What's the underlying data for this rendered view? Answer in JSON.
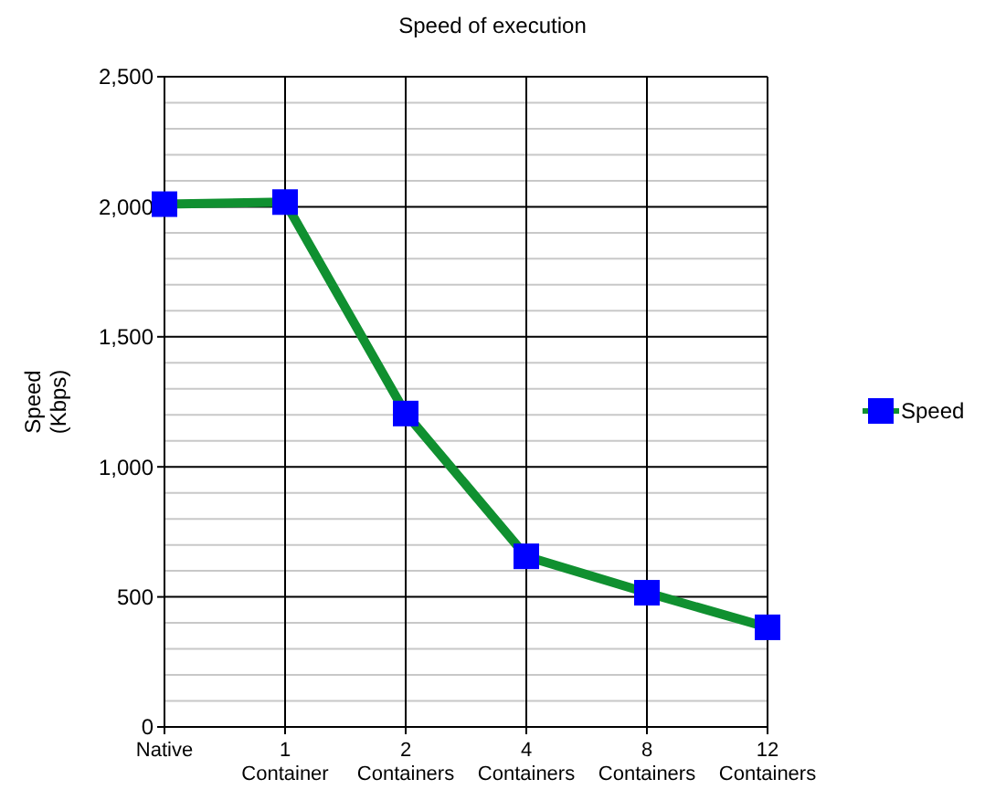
{
  "chart_data": {
    "type": "line",
    "title": "Speed of execution",
    "ylabel": "Speed (Kbps)",
    "categories": [
      "Native",
      "1 Container",
      "2 Containers",
      "4 Containers",
      "8 Containers",
      "12 Containers"
    ],
    "series": [
      {
        "name": "Speed",
        "color": "#109030",
        "colors": [
          "#0000ff",
          "#0000ff",
          "#0000ff",
          "#0000ff",
          "#0000ff",
          "#0000ff"
        ],
        "values": [
          2010,
          2018,
          1205,
          656,
          516,
          383
        ]
      }
    ],
    "ylim": [
      0,
      2500
    ],
    "yticks": [
      {
        "value": 0,
        "label": "0"
      },
      {
        "value": 500,
        "label": "500"
      },
      {
        "value": 1000,
        "label": "1,000"
      },
      {
        "value": 1500,
        "label": "1,500"
      },
      {
        "value": 2000,
        "label": "2,000"
      },
      {
        "value": 2500,
        "label": "2,500"
      }
    ],
    "grid": true,
    "legend": "right",
    "marker": "square",
    "line_style": "solid"
  }
}
